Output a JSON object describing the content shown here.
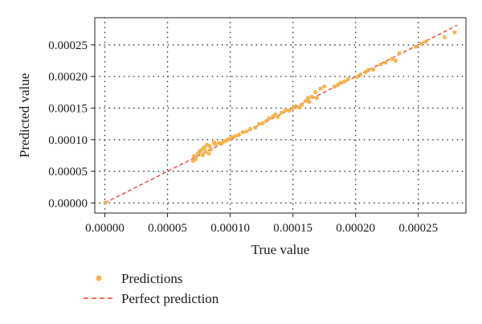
{
  "chart_data": {
    "type": "scatter",
    "xlabel": "True value",
    "ylabel": "Predicted value",
    "xlim": [
      -8e-06,
      0.000288
    ],
    "ylim": [
      -1.6e-05,
      0.000293
    ],
    "x_ticks": [
      0,
      5e-05,
      0.0001,
      0.00015,
      0.0002,
      0.00025
    ],
    "x_tick_labels": [
      "0.00000",
      "0.00005",
      "0.00010",
      "0.00015",
      "0.00020",
      "0.00025"
    ],
    "y_ticks": [
      0,
      5e-05,
      0.0001,
      0.00015,
      0.0002,
      0.00025
    ],
    "y_tick_labels": [
      "0.00000",
      "0.00005",
      "0.00010",
      "0.00015",
      "0.00020",
      "0.00025"
    ],
    "grid": true,
    "grid_style": "dotted",
    "legend_position": "below-left",
    "series": [
      {
        "name": "Predictions",
        "kind": "scatter",
        "color": "#f5b041",
        "points": [
          [
            5e-07,
            5e-07
          ],
          [
            7.05e-05,
            6.65e-05
          ],
          [
            7.1e-05,
            7.4e-05
          ],
          [
            7.25e-05,
            7e-05
          ],
          [
            7.4e-05,
            7.75e-05
          ],
          [
            7.55e-05,
            8.05e-05
          ],
          [
            7.65e-05,
            8.3e-05
          ],
          [
            7.8e-05,
            7.55e-05
          ],
          [
            7.85e-05,
            8.6e-05
          ],
          [
            7.95e-05,
            8.8e-05
          ],
          [
            8.05e-05,
            8.1e-05
          ],
          [
            8.15e-05,
            9.2e-05
          ],
          [
            8.3e-05,
            7.8e-05
          ],
          [
            8.35e-05,
            9e-05
          ],
          [
            8.45e-05,
            8.45e-05
          ],
          [
            8.7e-05,
            9.6e-05
          ],
          [
            8.8e-05,
            9.3e-05
          ],
          [
            9.1e-05,
            9.5e-05
          ],
          [
            9.3e-05,
            9.4e-05
          ],
          [
            9.5e-05,
            9.7e-05
          ],
          [
            9.7e-05,
            9.9e-05
          ],
          [
            9.9e-05,
            0.000101
          ],
          [
            0.000101,
            0.000104
          ],
          [
            0.000104,
            0.000106
          ],
          [
            0.000107,
            0.000108
          ],
          [
            0.00011,
            0.000112
          ],
          [
            0.000113,
            0.000113
          ],
          [
            0.000116,
            0.000117
          ],
          [
            0.00012,
            0.000119
          ],
          [
            0.000123,
            0.000125
          ],
          [
            0.000126,
            0.000126
          ],
          [
            0.000129,
            0.00013
          ],
          [
            0.000131,
            0.000134
          ],
          [
            0.000134,
            0.000137
          ],
          [
            0.000136,
            0.00014
          ],
          [
            0.000138,
            0.000136
          ],
          [
            0.000141,
            0.000143
          ],
          [
            0.000144,
            0.000147
          ],
          [
            0.000147,
            0.000146
          ],
          [
            0.00015,
            0.00015
          ],
          [
            0.000152,
            0.000153
          ],
          [
            0.000155,
            0.000151
          ],
          [
            0.000157,
            0.000155
          ],
          [
            0.00016,
            0.000161
          ],
          [
            0.000162,
            0.000166
          ],
          [
            0.000163,
            0.00016
          ],
          [
            0.000165,
            0.000168
          ],
          [
            0.000168,
            0.000175
          ],
          [
            0.000169,
            0.000166
          ],
          [
            0.000172,
            0.000181
          ],
          [
            0.000175,
            0.000184
          ],
          [
            0.000183,
            0.000184
          ],
          [
            0.000186,
            0.000187
          ],
          [
            0.000188,
            0.00019
          ],
          [
            0.000191,
            0.000192
          ],
          [
            0.000194,
            0.000196
          ],
          [
            0.000201,
            0.000199
          ],
          [
            0.000204,
            0.000203
          ],
          [
            0.000208,
            0.000207
          ],
          [
            0.00021,
            0.00021
          ],
          [
            0.000214,
            0.000211
          ],
          [
            0.00022,
            0.000219
          ],
          [
            0.000224,
            0.000222
          ],
          [
            0.000229,
            0.000228
          ],
          [
            0.000232,
            0.000225
          ],
          [
            0.000235,
            0.000237
          ],
          [
            0.000248,
            0.000247
          ],
          [
            0.000252,
            0.000252
          ],
          [
            0.000256,
            0.000255
          ],
          [
            0.000271,
            0.000262
          ],
          [
            0.000279,
            0.00027
          ]
        ]
      },
      {
        "name": "Perfect prediction",
        "kind": "line",
        "style": "dashed",
        "color": "#e8402a",
        "points": [
          [
            0,
            0
          ],
          [
            0.000281,
            0.000281
          ]
        ]
      }
    ]
  }
}
